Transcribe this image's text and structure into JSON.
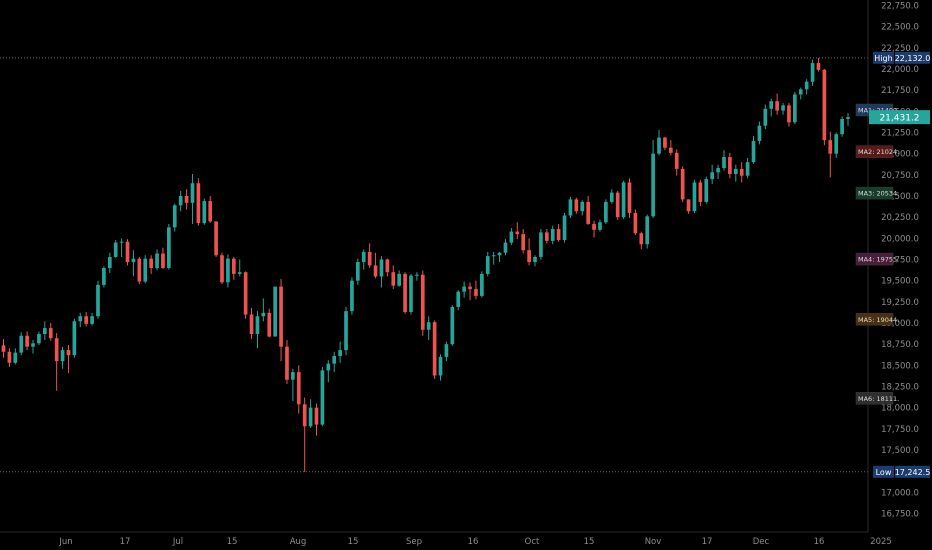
{
  "chart_data": {
    "type": "candlestick",
    "title": "",
    "xlabel": "",
    "ylabel": "",
    "ylim": [
      16500,
      22800
    ],
    "y_ticks": [
      "16,750.0",
      "17,000.0",
      "17,250.0",
      "17,500.0",
      "17,750.0",
      "18,000.0",
      "18,250.0",
      "18,500.0",
      "18,750.0",
      "19,000.0",
      "19,250.0",
      "19,500.0",
      "19,750.0",
      "20,000.0",
      "20,250.0",
      "20,500.0",
      "20,750.0",
      "21,000.0",
      "21,250.0",
      "21,500.0",
      "21,750.0",
      "22,000.0",
      "22,250.0",
      "22,500.0",
      "22,750.0"
    ],
    "x_ticks": [
      "Jun",
      "17",
      "Jul",
      "15",
      "Aug",
      "15",
      "Sep",
      "16",
      "Oct",
      "15",
      "Nov",
      "17",
      "Dec",
      "16",
      "2025"
    ],
    "grid": false,
    "candles": [
      [
        18735,
        18810,
        18590,
        18660
      ],
      [
        18660,
        18700,
        18480,
        18530
      ],
      [
        18530,
        18700,
        18510,
        18650
      ],
      [
        18650,
        18890,
        18620,
        18850
      ],
      [
        18850,
        18900,
        18680,
        18720
      ],
      [
        18720,
        18800,
        18640,
        18760
      ],
      [
        18760,
        18900,
        18740,
        18870
      ],
      [
        18870,
        19020,
        18800,
        18940
      ],
      [
        18940,
        19000,
        18790,
        18820
      ],
      [
        18820,
        18880,
        18200,
        18550
      ],
      [
        18550,
        18720,
        18460,
        18680
      ],
      [
        18680,
        18740,
        18410,
        18620
      ],
      [
        18620,
        19050,
        18590,
        19020
      ],
      [
        19020,
        19120,
        18950,
        19080
      ],
      [
        19080,
        19130,
        18960,
        18990
      ],
      [
        18990,
        19120,
        18970,
        19080
      ],
      [
        19080,
        19500,
        19050,
        19450
      ],
      [
        19450,
        19670,
        19420,
        19650
      ],
      [
        19650,
        19830,
        19590,
        19780
      ],
      [
        19780,
        19980,
        19770,
        19950
      ],
      [
        19950,
        20000,
        19780,
        19960
      ],
      [
        19960,
        19990,
        19680,
        19720
      ],
      [
        19720,
        19860,
        19550,
        19760
      ],
      [
        19760,
        19780,
        19460,
        19490
      ],
      [
        19490,
        19800,
        19470,
        19760
      ],
      [
        19760,
        19800,
        19580,
        19650
      ],
      [
        19650,
        19870,
        19620,
        19820
      ],
      [
        19820,
        19890,
        19640,
        19650
      ],
      [
        19650,
        20170,
        19630,
        20130
      ],
      [
        20130,
        20410,
        20080,
        20390
      ],
      [
        20390,
        20560,
        20320,
        20500
      ],
      [
        20500,
        20580,
        20340,
        20420
      ],
      [
        20420,
        20760,
        20170,
        20650
      ],
      [
        20650,
        20710,
        20150,
        20180
      ],
      [
        20180,
        20470,
        20160,
        20440
      ],
      [
        20440,
        20500,
        20180,
        20200
      ],
      [
        20200,
        20200,
        19780,
        19800
      ],
      [
        19800,
        19830,
        19460,
        19480
      ],
      [
        19480,
        19810,
        19420,
        19760
      ],
      [
        19760,
        19780,
        19510,
        19580
      ],
      [
        19580,
        19750,
        19550,
        19600
      ],
      [
        19600,
        19610,
        19050,
        19100
      ],
      [
        19100,
        19180,
        18810,
        18870
      ],
      [
        18870,
        19140,
        18700,
        19080
      ],
      [
        19080,
        19290,
        19020,
        19120
      ],
      [
        19120,
        19170,
        18830,
        18840
      ],
      [
        18840,
        19420,
        18850,
        19430
      ],
      [
        19430,
        19520,
        18550,
        18720
      ],
      [
        18720,
        18800,
        18280,
        18330
      ],
      [
        18330,
        18460,
        18080,
        18420
      ],
      [
        18420,
        18500,
        17930,
        18040
      ],
      [
        18040,
        18120,
        17240,
        17780
      ],
      [
        17780,
        18100,
        17760,
        18000
      ],
      [
        18000,
        18050,
        17670,
        17800
      ],
      [
        17800,
        18480,
        17780,
        18440
      ],
      [
        18440,
        18560,
        18300,
        18520
      ],
      [
        18520,
        18660,
        18420,
        18610
      ],
      [
        18610,
        18780,
        18530,
        18680
      ],
      [
        18680,
        19190,
        18620,
        19140
      ],
      [
        19140,
        19540,
        19100,
        19500
      ],
      [
        19500,
        19760,
        19450,
        19720
      ],
      [
        19720,
        19870,
        19630,
        19840
      ],
      [
        19840,
        19940,
        19650,
        19680
      ],
      [
        19680,
        19830,
        19530,
        19550
      ],
      [
        19550,
        19790,
        19420,
        19750
      ],
      [
        19750,
        19760,
        19550,
        19600
      ],
      [
        19600,
        19680,
        19400,
        19440
      ],
      [
        19440,
        19620,
        19430,
        19580
      ],
      [
        19580,
        19600,
        19110,
        19130
      ],
      [
        19130,
        19580,
        19100,
        19560
      ],
      [
        19560,
        19600,
        19500,
        19570
      ],
      [
        19570,
        19620,
        18850,
        18920
      ],
      [
        18920,
        19080,
        18800,
        19010
      ],
      [
        19010,
        19030,
        18340,
        18380
      ],
      [
        18380,
        18630,
        18320,
        18600
      ],
      [
        18600,
        18780,
        18550,
        18750
      ],
      [
        18750,
        19210,
        18730,
        19190
      ],
      [
        19190,
        19390,
        19150,
        19370
      ],
      [
        19370,
        19490,
        19300,
        19430
      ],
      [
        19430,
        19480,
        19270,
        19400
      ],
      [
        19400,
        19500,
        19280,
        19320
      ],
      [
        19320,
        19610,
        19300,
        19580
      ],
      [
        19580,
        19840,
        19550,
        19790
      ],
      [
        19790,
        19840,
        19690,
        19800
      ],
      [
        19800,
        19840,
        19720,
        19830
      ],
      [
        19830,
        19990,
        19800,
        19950
      ],
      [
        19950,
        20120,
        19920,
        20080
      ],
      [
        20080,
        20190,
        19990,
        20050
      ],
      [
        20050,
        20110,
        19820,
        19860
      ],
      [
        19860,
        20000,
        19680,
        19720
      ],
      [
        19720,
        19800,
        19670,
        19780
      ],
      [
        19780,
        20110,
        19750,
        20070
      ],
      [
        20070,
        20110,
        19940,
        19970
      ],
      [
        19970,
        20150,
        19930,
        20110
      ],
      [
        20110,
        20170,
        19960,
        19980
      ],
      [
        19980,
        20300,
        19950,
        20270
      ],
      [
        20270,
        20490,
        20240,
        20460
      ],
      [
        20460,
        20480,
        20290,
        20320
      ],
      [
        20320,
        20450,
        20270,
        20430
      ],
      [
        20430,
        20500,
        20160,
        20170
      ],
      [
        20170,
        20210,
        20010,
        20100
      ],
      [
        20100,
        20220,
        20080,
        20190
      ],
      [
        20190,
        20460,
        20170,
        20430
      ],
      [
        20430,
        20580,
        20410,
        20540
      ],
      [
        20540,
        20560,
        20220,
        20250
      ],
      [
        20250,
        20680,
        20230,
        20660
      ],
      [
        20660,
        20710,
        20240,
        20300
      ],
      [
        20300,
        20340,
        20040,
        20060
      ],
      [
        20060,
        20080,
        19870,
        19930
      ],
      [
        19930,
        20280,
        19880,
        20260
      ],
      [
        20260,
        21160,
        20240,
        21000
      ],
      [
        21000,
        21280,
        20980,
        21190
      ],
      [
        21190,
        21200,
        21040,
        21070
      ],
      [
        21070,
        21160,
        20980,
        21010
      ],
      [
        21010,
        21050,
        20740,
        20820
      ],
      [
        20820,
        20850,
        20430,
        20460
      ],
      [
        20460,
        20460,
        20290,
        20320
      ],
      [
        20320,
        20690,
        20300,
        20660
      ],
      [
        20660,
        20690,
        20380,
        20430
      ],
      [
        20430,
        20730,
        20410,
        20700
      ],
      [
        20700,
        20870,
        20640,
        20780
      ],
      [
        20780,
        20870,
        20700,
        20830
      ],
      [
        20830,
        21040,
        20800,
        20960
      ],
      [
        20960,
        21010,
        20710,
        20760
      ],
      [
        20760,
        20870,
        20670,
        20820
      ],
      [
        20820,
        20900,
        20660,
        20740
      ],
      [
        20740,
        20950,
        20710,
        20900
      ],
      [
        20900,
        21210,
        20880,
        21150
      ],
      [
        21150,
        21380,
        21110,
        21330
      ],
      [
        21330,
        21580,
        21290,
        21530
      ],
      [
        21530,
        21650,
        21440,
        21620
      ],
      [
        21620,
        21710,
        21460,
        21510
      ],
      [
        21510,
        21600,
        21460,
        21570
      ],
      [
        21570,
        21600,
        21320,
        21370
      ],
      [
        21370,
        21730,
        21350,
        21700
      ],
      [
        21700,
        21780,
        21640,
        21760
      ],
      [
        21760,
        21880,
        21700,
        21850
      ],
      [
        21850,
        22110,
        21800,
        22070
      ],
      [
        22070,
        22130,
        21970,
        21990
      ],
      [
        21990,
        22000,
        21100,
        21160
      ],
      [
        21160,
        21260,
        20720,
        21000
      ],
      [
        21000,
        21250,
        20950,
        21230
      ],
      [
        21230,
        21440,
        21200,
        21410
      ],
      [
        21410,
        21480,
        21330,
        21431
      ]
    ],
    "markers": {
      "high": {
        "label": "High",
        "value": "22,132.0"
      },
      "low": {
        "label": "Low",
        "value": "17,242.5"
      }
    },
    "last_price": {
      "value": "21,431.2",
      "color": "#26a69a"
    },
    "moving_averages": [
      {
        "label": "MA1: 21400.",
        "value": 21400,
        "color": "#1e3a5f"
      },
      {
        "label": "MA2: 21024.",
        "value": 21024,
        "color": "#5b1a1a"
      },
      {
        "label": "MA3: 20534.",
        "value": 20534,
        "color": "#173d2b"
      },
      {
        "label": "MA4: 19755.",
        "value": 19755,
        "color": "#4a1d3a"
      },
      {
        "label": "MA5: 19044.",
        "value": 19044,
        "color": "#4a3010"
      },
      {
        "label": "MA6: 18111.",
        "value": 18111,
        "color": "#2e2e2e"
      }
    ],
    "colors": {
      "up": "#26a69a",
      "down": "#ef5350",
      "axis_text": "#8c8c8c",
      "marker_bg": "#1c3b6e"
    }
  }
}
